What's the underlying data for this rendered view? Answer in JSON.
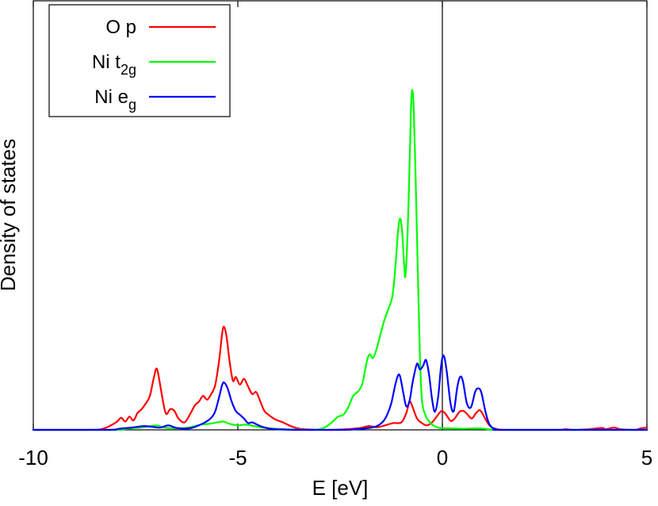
{
  "chart_data": {
    "type": "line",
    "title": "",
    "xlabel": "E [eV]",
    "ylabel": "Density of states",
    "xlim": [
      -10,
      5
    ],
    "ylim": [
      0,
      1.0
    ],
    "x_ticks": [
      -10,
      -5,
      0,
      5
    ],
    "x_tick_labels": [
      "-10",
      "-5",
      "0",
      "5"
    ],
    "y_ticks_shown": false,
    "grid": false,
    "legend_position": "top-left",
    "fermi_level_line": 0,
    "series": [
      {
        "name": "O p",
        "name_main": "O p",
        "name_sub": "",
        "color": "#ff0000",
        "points": [
          [
            -10,
            0
          ],
          [
            -8.6,
            0
          ],
          [
            -8.3,
            0.003
          ],
          [
            -8.1,
            0.012
          ],
          [
            -7.95,
            0.022
          ],
          [
            -7.85,
            0.032
          ],
          [
            -7.75,
            0.022
          ],
          [
            -7.65,
            0.035
          ],
          [
            -7.55,
            0.025
          ],
          [
            -7.45,
            0.045
          ],
          [
            -7.35,
            0.055
          ],
          [
            -7.25,
            0.07
          ],
          [
            -7.15,
            0.09
          ],
          [
            -7.05,
            0.14
          ],
          [
            -6.98,
            0.162
          ],
          [
            -6.9,
            0.12
          ],
          [
            -6.82,
            0.07
          ],
          [
            -6.75,
            0.042
          ],
          [
            -6.65,
            0.055
          ],
          [
            -6.55,
            0.05
          ],
          [
            -6.45,
            0.03
          ],
          [
            -6.3,
            0.02
          ],
          [
            -6.15,
            0.045
          ],
          [
            -6.05,
            0.065
          ],
          [
            -5.95,
            0.075
          ],
          [
            -5.85,
            0.09
          ],
          [
            -5.75,
            0.08
          ],
          [
            -5.65,
            0.095
          ],
          [
            -5.55,
            0.12
          ],
          [
            -5.45,
            0.19
          ],
          [
            -5.4,
            0.24
          ],
          [
            -5.35,
            0.273
          ],
          [
            -5.28,
            0.25
          ],
          [
            -5.2,
            0.18
          ],
          [
            -5.12,
            0.13
          ],
          [
            -5.05,
            0.14
          ],
          [
            -4.95,
            0.12
          ],
          [
            -4.85,
            0.135
          ],
          [
            -4.75,
            0.115
          ],
          [
            -4.65,
            0.095
          ],
          [
            -4.55,
            0.1
          ],
          [
            -4.45,
            0.075
          ],
          [
            -4.35,
            0.05
          ],
          [
            -4.25,
            0.04
          ],
          [
            -4.15,
            0.032
          ],
          [
            -4.05,
            0.026
          ],
          [
            -3.9,
            0.02
          ],
          [
            -3.75,
            0.012
          ],
          [
            -3.6,
            0.006
          ],
          [
            -3.4,
            0.002
          ],
          [
            -2.8,
            0
          ],
          [
            -2.3,
            0.002
          ],
          [
            -2.0,
            0.005
          ],
          [
            -1.8,
            0.01
          ],
          [
            -1.6,
            0.007
          ],
          [
            -1.4,
            0.012
          ],
          [
            -1.2,
            0.018
          ],
          [
            -1.0,
            0.02
          ],
          [
            -0.88,
            0.045
          ],
          [
            -0.8,
            0.075
          ],
          [
            -0.72,
            0.058
          ],
          [
            -0.62,
            0.03
          ],
          [
            -0.5,
            0.018
          ],
          [
            -0.38,
            0.012
          ],
          [
            -0.25,
            0.02
          ],
          [
            -0.12,
            0.038
          ],
          [
            -0.02,
            0.05
          ],
          [
            0.08,
            0.042
          ],
          [
            0.2,
            0.024
          ],
          [
            0.3,
            0.03
          ],
          [
            0.42,
            0.048
          ],
          [
            0.52,
            0.05
          ],
          [
            0.62,
            0.04
          ],
          [
            0.72,
            0.03
          ],
          [
            0.82,
            0.044
          ],
          [
            0.92,
            0.052
          ],
          [
            1.02,
            0.035
          ],
          [
            1.15,
            0.012
          ],
          [
            1.3,
            0.003
          ],
          [
            1.6,
            0
          ],
          [
            2.8,
            0
          ],
          [
            3.0,
            0.002
          ],
          [
            3.2,
            0
          ],
          [
            3.6,
            0.002
          ],
          [
            3.9,
            0.005
          ],
          [
            4.0,
            0.002
          ],
          [
            4.2,
            0.006
          ],
          [
            4.35,
            0.002
          ],
          [
            4.7,
            0
          ],
          [
            4.85,
            0.004
          ],
          [
            5.0,
            0.006
          ]
        ]
      },
      {
        "name": "Ni t2g",
        "name_main": "Ni t",
        "name_sub": "2g",
        "color": "#00ff00",
        "points": [
          [
            -10,
            0
          ],
          [
            -8.0,
            0
          ],
          [
            -7.8,
            0.002
          ],
          [
            -7.6,
            0.004
          ],
          [
            -7.3,
            0.007
          ],
          [
            -7.0,
            0.012
          ],
          [
            -6.8,
            0.006
          ],
          [
            -6.5,
            0.004
          ],
          [
            -6.2,
            0.006
          ],
          [
            -5.9,
            0.014
          ],
          [
            -5.7,
            0.016
          ],
          [
            -5.5,
            0.02
          ],
          [
            -5.35,
            0.022
          ],
          [
            -5.2,
            0.016
          ],
          [
            -5.0,
            0.012
          ],
          [
            -4.8,
            0.014
          ],
          [
            -4.6,
            0.01
          ],
          [
            -4.4,
            0.006
          ],
          [
            -4.1,
            0.003
          ],
          [
            -3.7,
            0.001
          ],
          [
            -3.2,
            0
          ],
          [
            -3.0,
            0.002
          ],
          [
            -2.85,
            0.008
          ],
          [
            -2.7,
            0.02
          ],
          [
            -2.55,
            0.035
          ],
          [
            -2.42,
            0.04
          ],
          [
            -2.3,
            0.06
          ],
          [
            -2.18,
            0.09
          ],
          [
            -2.05,
            0.103
          ],
          [
            -1.95,
            0.125
          ],
          [
            -1.85,
            0.18
          ],
          [
            -1.78,
            0.2
          ],
          [
            -1.7,
            0.19
          ],
          [
            -1.62,
            0.21
          ],
          [
            -1.52,
            0.25
          ],
          [
            -1.42,
            0.29
          ],
          [
            -1.32,
            0.32
          ],
          [
            -1.22,
            0.355
          ],
          [
            -1.15,
            0.43
          ],
          [
            -1.08,
            0.53
          ],
          [
            -1.03,
            0.56
          ],
          [
            -0.98,
            0.52
          ],
          [
            -0.93,
            0.43
          ],
          [
            -0.9,
            0.41
          ],
          [
            -0.85,
            0.52
          ],
          [
            -0.8,
            0.71
          ],
          [
            -0.77,
            0.84
          ],
          [
            -0.74,
            0.9
          ],
          [
            -0.7,
            0.85
          ],
          [
            -0.65,
            0.65
          ],
          [
            -0.6,
            0.42
          ],
          [
            -0.55,
            0.2
          ],
          [
            -0.5,
            0.08
          ],
          [
            -0.42,
            0.04
          ],
          [
            -0.32,
            0.022
          ],
          [
            -0.2,
            0.01
          ],
          [
            -0.05,
            0.005
          ],
          [
            0.2,
            0.004
          ],
          [
            0.5,
            0.003
          ],
          [
            0.8,
            0.004
          ],
          [
            1.0,
            0.003
          ],
          [
            1.2,
            0.001
          ],
          [
            1.5,
            0
          ],
          [
            5.0,
            0
          ]
        ]
      },
      {
        "name": "Ni eg",
        "name_main": "Ni e",
        "name_sub": "g",
        "color": "#0000ff",
        "points": [
          [
            -10,
            0
          ],
          [
            -8.2,
            0
          ],
          [
            -7.9,
            0.003
          ],
          [
            -7.6,
            0.006
          ],
          [
            -7.3,
            0.01
          ],
          [
            -7.1,
            0.008
          ],
          [
            -6.9,
            0.006
          ],
          [
            -6.7,
            0.012
          ],
          [
            -6.5,
            0.005
          ],
          [
            -6.2,
            0.004
          ],
          [
            -6.0,
            0.01
          ],
          [
            -5.8,
            0.02
          ],
          [
            -5.65,
            0.032
          ],
          [
            -5.55,
            0.05
          ],
          [
            -5.45,
            0.09
          ],
          [
            -5.38,
            0.12
          ],
          [
            -5.33,
            0.125
          ],
          [
            -5.25,
            0.11
          ],
          [
            -5.15,
            0.075
          ],
          [
            -5.05,
            0.05
          ],
          [
            -4.95,
            0.04
          ],
          [
            -4.85,
            0.03
          ],
          [
            -4.75,
            0.018
          ],
          [
            -4.65,
            0.02
          ],
          [
            -4.55,
            0.015
          ],
          [
            -4.4,
            0.008
          ],
          [
            -4.2,
            0.003
          ],
          [
            -3.9,
            0.001
          ],
          [
            -3.5,
            0
          ],
          [
            -2.4,
            0
          ],
          [
            -2.1,
            0.002
          ],
          [
            -1.8,
            0.005
          ],
          [
            -1.6,
            0.01
          ],
          [
            -1.45,
            0.022
          ],
          [
            -1.35,
            0.04
          ],
          [
            -1.25,
            0.07
          ],
          [
            -1.15,
            0.12
          ],
          [
            -1.08,
            0.145
          ],
          [
            -1.03,
            0.14
          ],
          [
            -0.95,
            0.095
          ],
          [
            -0.88,
            0.062
          ],
          [
            -0.8,
            0.078
          ],
          [
            -0.72,
            0.13
          ],
          [
            -0.62,
            0.175
          ],
          [
            -0.55,
            0.16
          ],
          [
            -0.47,
            0.17
          ],
          [
            -0.4,
            0.185
          ],
          [
            -0.33,
            0.15
          ],
          [
            -0.25,
            0.08
          ],
          [
            -0.18,
            0.048
          ],
          [
            -0.1,
            0.09
          ],
          [
            -0.03,
            0.17
          ],
          [
            0.03,
            0.197
          ],
          [
            0.1,
            0.16
          ],
          [
            0.2,
            0.07
          ],
          [
            0.28,
            0.05
          ],
          [
            0.36,
            0.11
          ],
          [
            0.43,
            0.14
          ],
          [
            0.5,
            0.13
          ],
          [
            0.6,
            0.07
          ],
          [
            0.7,
            0.06
          ],
          [
            0.8,
            0.1
          ],
          [
            0.87,
            0.11
          ],
          [
            0.95,
            0.1
          ],
          [
            1.05,
            0.05
          ],
          [
            1.15,
            0.015
          ],
          [
            1.3,
            0.002
          ],
          [
            1.6,
            0
          ],
          [
            5.0,
            0
          ]
        ]
      }
    ]
  }
}
